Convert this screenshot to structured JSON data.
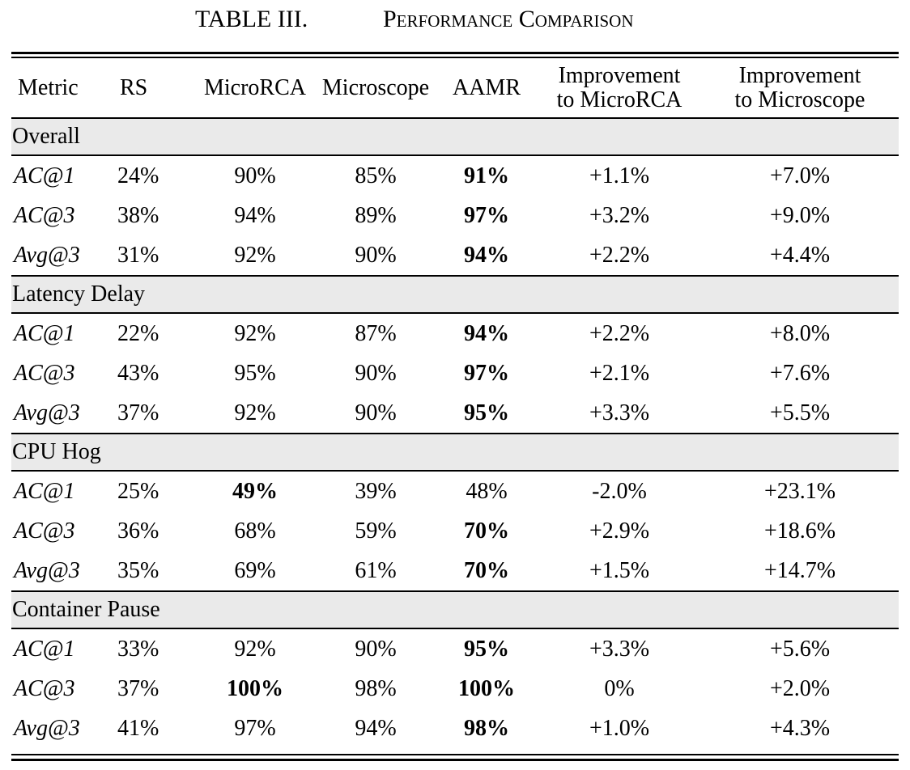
{
  "caption": {
    "label": "TABLE III.",
    "title": "Performance Comparison"
  },
  "columns": [
    "Metric",
    "RS",
    "MicroRCA",
    "Microscope",
    "AAMR",
    "Improvement to MicroRCA",
    "Improvement to Microscope"
  ],
  "column_lines": [
    [
      "Metric"
    ],
    [
      "RS"
    ],
    [
      "MicroRCA"
    ],
    [
      "Microscope"
    ],
    [
      "AAMR"
    ],
    [
      "Improvement",
      "to MicroRCA"
    ],
    [
      "Improvement",
      "to Microscope"
    ]
  ],
  "groups": [
    {
      "name": "Overall",
      "rows": [
        {
          "metric": "AC@1",
          "cells": [
            "24%",
            "90%",
            "85%",
            "91%",
            "+1.1%",
            "+7.0%"
          ],
          "bold": [
            3
          ]
        },
        {
          "metric": "AC@3",
          "cells": [
            "38%",
            "94%",
            "89%",
            "97%",
            "+3.2%",
            "+9.0%"
          ],
          "bold": [
            3
          ]
        },
        {
          "metric": "Avg@3",
          "cells": [
            "31%",
            "92%",
            "90%",
            "94%",
            "+2.2%",
            "+4.4%"
          ],
          "bold": [
            3
          ]
        }
      ]
    },
    {
      "name": "Latency Delay",
      "rows": [
        {
          "metric": "AC@1",
          "cells": [
            "22%",
            "92%",
            "87%",
            "94%",
            "+2.2%",
            "+8.0%"
          ],
          "bold": [
            3
          ]
        },
        {
          "metric": "AC@3",
          "cells": [
            "43%",
            "95%",
            "90%",
            "97%",
            "+2.1%",
            "+7.6%"
          ],
          "bold": [
            3
          ]
        },
        {
          "metric": "Avg@3",
          "cells": [
            "37%",
            "92%",
            "90%",
            "95%",
            "+3.3%",
            "+5.5%"
          ],
          "bold": [
            3
          ]
        }
      ]
    },
    {
      "name": "CPU Hog",
      "rows": [
        {
          "metric": "AC@1",
          "cells": [
            "25%",
            "49%",
            "39%",
            "48%",
            "-2.0%",
            "+23.1%"
          ],
          "bold": [
            1
          ]
        },
        {
          "metric": "AC@3",
          "cells": [
            "36%",
            "68%",
            "59%",
            "70%",
            "+2.9%",
            "+18.6%"
          ],
          "bold": [
            3
          ]
        },
        {
          "metric": "Avg@3",
          "cells": [
            "35%",
            "69%",
            "61%",
            "70%",
            "+1.5%",
            "+14.7%"
          ],
          "bold": [
            3
          ]
        }
      ]
    },
    {
      "name": "Container Pause",
      "rows": [
        {
          "metric": "AC@1",
          "cells": [
            "33%",
            "92%",
            "90%",
            "95%",
            "+3.3%",
            "+5.6%"
          ],
          "bold": [
            3
          ]
        },
        {
          "metric": "AC@3",
          "cells": [
            "37%",
            "100%",
            "98%",
            "100%",
            "0%",
            "+2.0%"
          ],
          "bold": [
            1,
            3
          ]
        },
        {
          "metric": "Avg@3",
          "cells": [
            "41%",
            "97%",
            "94%",
            "98%",
            "+1.0%",
            "+4.3%"
          ],
          "bold": [
            3
          ]
        }
      ]
    }
  ]
}
